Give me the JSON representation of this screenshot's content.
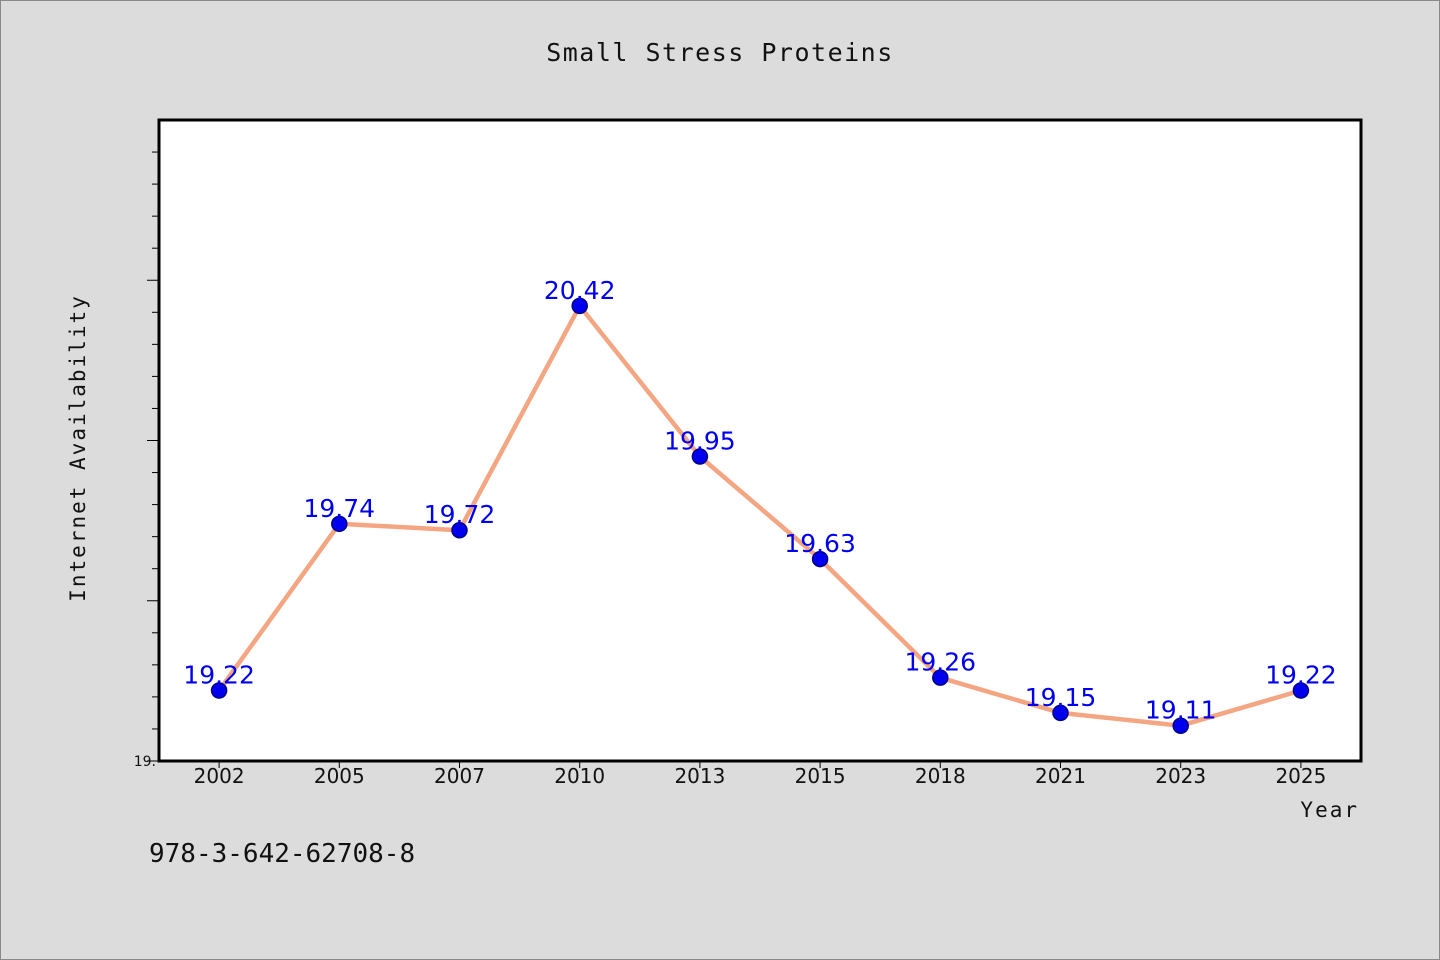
{
  "colors": {
    "background": "#dcdcdc",
    "plot_background": "#ffffff",
    "line": "#f4a582",
    "marker": "#0000ee",
    "marker_edge": "#000088",
    "data_label": "#0000ee"
  },
  "footnote": "978-3-642-62708-8",
  "chart_data": {
    "type": "line",
    "title": "Small Stress Proteins",
    "xlabel": "Year",
    "ylabel": "Internet Availability",
    "categories": [
      "2002",
      "2005",
      "2007",
      "2010",
      "2013",
      "2015",
      "2018",
      "2021",
      "2023",
      "2025"
    ],
    "series": [
      {
        "values": [
          19.22,
          19.74,
          19.72,
          20.42,
          19.95,
          19.63,
          19.26,
          19.15,
          19.11,
          19.22
        ],
        "labels": [
          "19.22",
          "19.74",
          "19.72",
          "20.42",
          "19.95",
          "19.63",
          "19.26",
          "19.15",
          "19.11",
          "19.22"
        ]
      }
    ],
    "ylim": [
      19.0,
      21.0
    ],
    "yticks_labeled": [
      {
        "value": 19.0,
        "label": "19."
      }
    ],
    "ytick_step_major": 0.5,
    "ytick_step_minor": 0.1,
    "grid": false,
    "legend": "none"
  }
}
